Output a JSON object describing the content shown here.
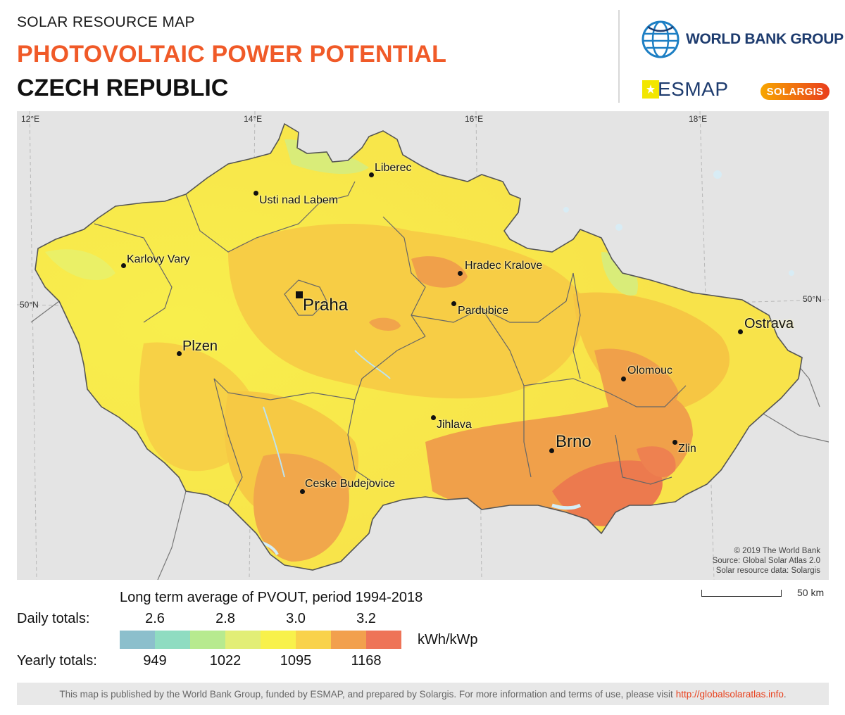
{
  "header": {
    "kicker": "SOLAR RESOURCE MAP",
    "title": "PHOTOVOLTAIC POWER POTENTIAL",
    "country": "CZECH REPUBLIC"
  },
  "logos": {
    "world_bank": "WORLD BANK GROUP",
    "esmap": "ESMAP",
    "solargis": "SOLARGIS"
  },
  "map": {
    "coords": [
      "12°E",
      "14°E",
      "16°E",
      "18°E",
      "50°N",
      "50°N"
    ],
    "cities": [
      "Liberec",
      "Usti nad Labem",
      "Karlovy Vary",
      "Hradec Kralove",
      "Praha",
      "Pardubice",
      "Ostrava",
      "Plzen",
      "Olomouc",
      "Jihlava",
      "Brno",
      "Zlin",
      "Ceske Budejovice"
    ],
    "credits": [
      "© 2019 The World Bank",
      "Source: Global Solar Atlas 2.0",
      "Solar resource data: Solargis"
    ],
    "scale_label": "50 km",
    "colors": {
      "background": "#e4e4e4",
      "country_yellow": "#f8e34a",
      "country_mid": "#f6c944",
      "country_orange": "#f0a04a",
      "country_red": "#ec7a4e",
      "border": "#5a5a5a"
    }
  },
  "legend": {
    "title": "Long term average of PVOUT, period 1994-2018",
    "daily_label": "Daily totals:",
    "yearly_label": "Yearly totals:",
    "daily_ticks": [
      "2.6",
      "2.8",
      "3.0",
      "3.2"
    ],
    "yearly_ticks": [
      "949",
      "1022",
      "1095",
      "1168"
    ],
    "unit": "kWh/kWp",
    "colors": [
      "#8cbfcc",
      "#8fdcc1",
      "#b7ea8f",
      "#e2ee76",
      "#f8f14b",
      "#f9d24b",
      "#f2a04d",
      "#ee7458"
    ]
  },
  "footer": {
    "text": "This map is published by the World Bank Group, funded by ESMAP, and prepared by Solargis. For more information and terms of use, please visit",
    "link": "http://globalsolaratlas.info",
    "suffix": "."
  }
}
